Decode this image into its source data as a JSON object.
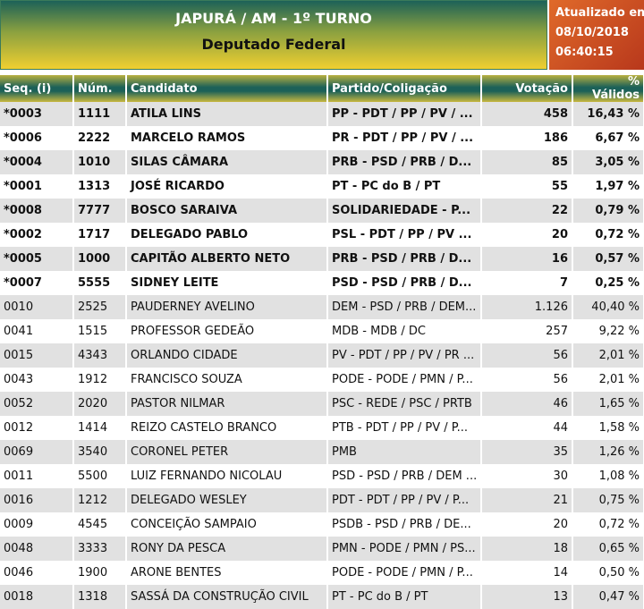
{
  "header": {
    "title": "JAPURÁ / AM - 1º TURNO",
    "subtitle": "Deputado Federal",
    "updated_label": "Atualizado em",
    "updated_date": "08/10/2018",
    "updated_time": "06:40:15"
  },
  "columns": [
    "Seq. (i)",
    "Núm.",
    "Candidato",
    "Partido/Coligação",
    "Votação",
    "% Válidos"
  ],
  "rows": [
    [
      "*0003",
      "1111",
      "ATILA LINS",
      "PP - PDT / PP / PV / ...",
      "458",
      "16,43 %"
    ],
    [
      "*0006",
      "2222",
      "MARCELO RAMOS",
      "PR - PDT / PP / PV / ...",
      "186",
      "6,67 %"
    ],
    [
      "*0004",
      "1010",
      "SILAS CÂMARA",
      "PRB - PSD / PRB / D...",
      "85",
      "3,05 %"
    ],
    [
      "*0001",
      "1313",
      "JOSÉ RICARDO",
      "PT - PC do B / PT",
      "55",
      "1,97 %"
    ],
    [
      "*0008",
      "7777",
      "BOSCO SARAIVA",
      "SOLIDARIEDADE - P...",
      "22",
      "0,79 %"
    ],
    [
      "*0002",
      "1717",
      "DELEGADO PABLO",
      "PSL - PDT / PP / PV ...",
      "20",
      "0,72 %"
    ],
    [
      "*0005",
      "1000",
      "CAPITÃO ALBERTO NETO",
      "PRB - PSD / PRB / D...",
      "16",
      "0,57 %"
    ],
    [
      "*0007",
      "5555",
      "SIDNEY LEITE",
      "PSD - PSD / PRB / D...",
      "7",
      "0,25 %"
    ],
    [
      "0010",
      "2525",
      "PAUDERNEY AVELINO",
      "DEM - PSD / PRB / DEM...",
      "1.126",
      "40,40 %"
    ],
    [
      "0041",
      "1515",
      "PROFESSOR GEDEÃO",
      "MDB - MDB / DC",
      "257",
      "9,22 %"
    ],
    [
      "0015",
      "4343",
      "ORLANDO CIDADE",
      "PV - PDT / PP / PV / PR ...",
      "56",
      "2,01 %"
    ],
    [
      "0043",
      "1912",
      "FRANCISCO SOUZA",
      "PODE - PODE / PMN / P...",
      "56",
      "2,01 %"
    ],
    [
      "0052",
      "2020",
      "PASTOR NILMAR",
      "PSC - REDE / PSC / PRTB",
      "46",
      "1,65 %"
    ],
    [
      "0012",
      "1414",
      "REIZO CASTELO BRANCO",
      "PTB - PDT / PP / PV / P...",
      "44",
      "1,58 %"
    ],
    [
      "0069",
      "3540",
      "CORONEL PETER",
      "PMB",
      "35",
      "1,26 %"
    ],
    [
      "0011",
      "5500",
      "LUIZ FERNANDO NICOLAU",
      "PSD - PSD / PRB / DEM ...",
      "30",
      "1,08 %"
    ],
    [
      "0016",
      "1212",
      "DELEGADO WESLEY",
      "PDT - PDT / PP / PV / P...",
      "21",
      "0,75 %"
    ],
    [
      "0009",
      "4545",
      "CONCEIÇÃO SAMPAIO",
      "PSDB - PSD / PRB / DE...",
      "20",
      "0,72 %"
    ],
    [
      "0048",
      "3333",
      "RONY DA PESCA",
      "PMN - PODE / PMN / PS...",
      "18",
      "0,65 %"
    ],
    [
      "0046",
      "1900",
      "ARONE BENTES",
      "PODE - PODE / PMN / P...",
      "14",
      "0,50 %"
    ],
    [
      "0018",
      "1318",
      "SASSÁ DA CONSTRUÇÃO CIVIL",
      "PT - PC do B / PT",
      "13",
      "0,47 %"
    ]
  ],
  "elected_count": 8
}
